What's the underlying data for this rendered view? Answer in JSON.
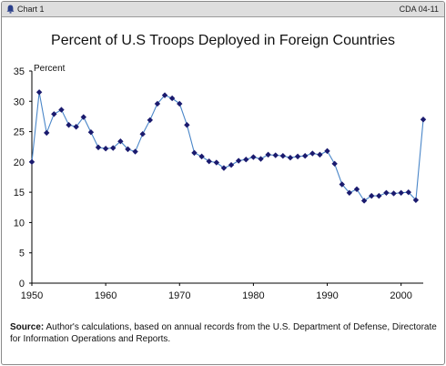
{
  "header": {
    "chart_label": "Chart 1",
    "code": "CDA 04-11",
    "icon": "bell-icon"
  },
  "source": {
    "label": "Source:",
    "text": "Author's calculations, based on annual records from the U.S. Department of Defense, Directorate for Information Operations and Reports."
  },
  "colors": {
    "marker": "#1a1a6e",
    "line": "#4a86c8",
    "axis": "#000000"
  },
  "chart_data": {
    "type": "line",
    "title": "Percent of U.S Troops Deployed in Foreign Countries",
    "ylabel": "Percent",
    "xlabel": "",
    "xlim": [
      1950,
      2003
    ],
    "ylim": [
      0,
      35
    ],
    "xticks": [
      1950,
      1960,
      1970,
      1980,
      1990,
      2000
    ],
    "yticks": [
      0,
      5,
      10,
      15,
      20,
      25,
      30,
      35
    ],
    "grid": false,
    "series": [
      {
        "x": [
          1950,
          1951,
          1952,
          1953,
          1954,
          1955,
          1956,
          1957,
          1958,
          1959,
          1960,
          1961,
          1962,
          1963,
          1964,
          1965,
          1966,
          1967,
          1968,
          1969,
          1970,
          1971,
          1972,
          1973,
          1974,
          1975,
          1976,
          1977,
          1978,
          1979,
          1980,
          1981,
          1982,
          1983,
          1984,
          1985,
          1986,
          1987,
          1988,
          1989,
          1990,
          1991,
          1992,
          1993,
          1994,
          1995,
          1996,
          1997,
          1998,
          1999,
          2000,
          2001,
          2002,
          2003
        ],
        "values": [
          20.0,
          31.5,
          24.8,
          27.9,
          28.6,
          26.1,
          25.8,
          27.4,
          24.9,
          22.4,
          22.2,
          22.3,
          23.4,
          22.1,
          21.7,
          24.6,
          26.9,
          29.6,
          31.0,
          30.5,
          29.6,
          26.1,
          21.5,
          20.9,
          20.1,
          19.9,
          19.0,
          19.5,
          20.2,
          20.4,
          20.8,
          20.5,
          21.2,
          21.1,
          21.0,
          20.7,
          20.9,
          21.0,
          21.4,
          21.2,
          21.8,
          19.7,
          16.3,
          14.9,
          15.5,
          13.6,
          14.4,
          14.4,
          14.9,
          14.8,
          14.9,
          15.0,
          13.7,
          27.0
        ]
      }
    ]
  }
}
